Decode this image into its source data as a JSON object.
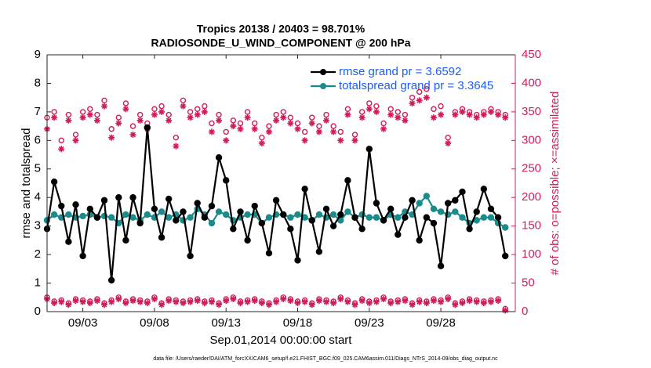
{
  "chart_data": {
    "type": "line",
    "title": "Tropics 20138 / 20403 = 98.701%",
    "subtitle": "RADIOSONDE_U_WIND_COMPONENT @ 200 hPa",
    "x_label": "Sep.01,2014 00:00:00 start",
    "y_label": "rmse and totalspread",
    "y2_label": "# of obs: o=possible; ×=assimilated",
    "annotation": "data file: /Users/raeder/DAI/ATM_forcXX/CAM6_setup/f.e21.FHIST_BGC.f09_025.CAM6assim.011/Diags_NTrS_2014-09/obs_diag_output.nc",
    "legend": "top-right",
    "xlim": [
      0.5,
      33.2
    ],
    "xticks": [
      {
        "value": 3,
        "label": "09/03"
      },
      {
        "value": 8,
        "label": "09/08"
      },
      {
        "value": 13,
        "label": "09/13"
      },
      {
        "value": 18,
        "label": "09/18"
      },
      {
        "value": 23,
        "label": "09/23"
      },
      {
        "value": 28,
        "label": "09/28"
      }
    ],
    "ylim": [
      0,
      9
    ],
    "yticks": [
      0,
      1,
      2,
      3,
      4,
      5,
      6,
      7,
      8,
      9
    ],
    "y2lim": [
      0,
      450
    ],
    "y2ticks": [
      0,
      50,
      100,
      150,
      200,
      250,
      300,
      350,
      400,
      450
    ],
    "x": [
      0.5,
      1,
      1.5,
      2,
      2.5,
      3,
      3.5,
      4,
      4.5,
      5,
      5.5,
      6,
      6.5,
      7,
      7.5,
      8,
      8.5,
      9,
      9.5,
      10,
      10.5,
      11,
      11.5,
      12,
      12.5,
      13,
      13.5,
      14,
      14.5,
      15,
      15.5,
      16,
      16.5,
      17,
      17.5,
      18,
      18.5,
      19,
      19.5,
      20,
      20.5,
      21,
      21.5,
      22,
      22.5,
      23,
      23.5,
      24,
      24.5,
      25,
      25.5,
      26,
      26.5,
      27,
      27.5,
      28,
      28.5,
      29,
      29.5,
      30,
      30.5,
      31,
      31.5,
      32,
      32.5
    ],
    "series": [
      {
        "name": "rmse grand pr = 3.6592",
        "color": "#000000",
        "marker": "filled-circle",
        "line": true,
        "values": [
          2.9,
          4.55,
          3.7,
          2.45,
          3.75,
          1.95,
          3.6,
          3.3,
          3.9,
          1.1,
          4.0,
          2.5,
          4.0,
          3.1,
          6.45,
          3.6,
          2.6,
          3.95,
          3.2,
          3.5,
          1.95,
          3.8,
          3.3,
          3.7,
          5.4,
          4.6,
          2.9,
          3.5,
          2.5,
          3.7,
          3.1,
          2.05,
          3.9,
          3.4,
          2.9,
          1.8,
          4.3,
          3.2,
          2.1,
          3.6,
          3.0,
          3.4,
          4.6,
          3.3,
          2.9,
          5.7,
          3.8,
          3.2,
          3.6,
          2.7,
          3.3,
          3.9,
          2.5,
          3.3,
          3.1,
          1.6,
          3.8,
          3.9,
          4.2,
          2.9,
          3.5,
          4.3,
          3.6,
          3.3,
          1.95
        ]
      },
      {
        "name": "totalspread grand pr = 3.3645",
        "color": "#1a8a8a",
        "marker": "filled-circle",
        "line": true,
        "values": [
          3.2,
          3.4,
          3.3,
          3.4,
          3.3,
          3.35,
          3.4,
          3.3,
          3.35,
          3.3,
          3.1,
          3.4,
          3.3,
          3.2,
          3.4,
          3.3,
          3.5,
          3.3,
          3.4,
          3.2,
          3.3,
          3.6,
          3.4,
          3.1,
          3.5,
          3.4,
          3.2,
          3.3,
          3.4,
          3.4,
          3.1,
          3.3,
          3.4,
          3.4,
          3.3,
          3.4,
          3.3,
          3.2,
          3.4,
          3.3,
          3.4,
          3.2,
          3.5,
          3.3,
          3.4,
          3.3,
          3.3,
          3.2,
          3.4,
          3.3,
          3.5,
          3.4,
          3.8,
          4.05,
          3.6,
          3.5,
          3.4,
          3.5,
          3.3,
          3.1,
          3.2,
          3.3,
          3.3,
          3.1,
          2.95
        ]
      },
      {
        "color": "#d01c5c",
        "marker": "circle",
        "line": false,
        "axis": "y2",
        "values": [
          340,
          350,
          300,
          345,
          310,
          350,
          355,
          345,
          370,
          320,
          340,
          365,
          325,
          345,
          330,
          355,
          360,
          345,
          305,
          370,
          350,
          355,
          360,
          330,
          345,
          315,
          335,
          330,
          350,
          330,
          305,
          325,
          345,
          350,
          340,
          330,
          315,
          340,
          325,
          345,
          325,
          315,
          355,
          310,
          350,
          365,
          360,
          330,
          355,
          350,
          345,
          375,
          385,
          390,
          355,
          360,
          305,
          350,
          355,
          350,
          345,
          350,
          355,
          350,
          345
        ]
      },
      {
        "color": "#d01c5c",
        "marker": "asterisk",
        "line": false,
        "axis": "y2",
        "values": [
          320,
          340,
          285,
          335,
          300,
          340,
          345,
          335,
          360,
          305,
          330,
          355,
          310,
          335,
          320,
          345,
          350,
          335,
          290,
          360,
          340,
          345,
          350,
          315,
          335,
          300,
          325,
          320,
          340,
          320,
          295,
          315,
          335,
          340,
          330,
          320,
          300,
          330,
          315,
          335,
          315,
          300,
          345,
          300,
          340,
          355,
          350,
          320,
          345,
          340,
          335,
          365,
          370,
          375,
          340,
          345,
          295,
          345,
          350,
          345,
          340,
          345,
          350,
          345,
          340
        ]
      },
      {
        "color": "#d01c5c",
        "marker": "circle",
        "line": false,
        "axis": "y2",
        "values": [
          25,
          18,
          20,
          15,
          22,
          20,
          18,
          22,
          15,
          20,
          25,
          18,
          22,
          20,
          18,
          25,
          15,
          22,
          20,
          18,
          20,
          22,
          18,
          20,
          15,
          22,
          25,
          18,
          20,
          22,
          18,
          15,
          20,
          25,
          22,
          18,
          20,
          15,
          22,
          20,
          18,
          25,
          20,
          15,
          22,
          18,
          20,
          25,
          18,
          20,
          22,
          15,
          20,
          18,
          22,
          20,
          25,
          15,
          18,
          22,
          20,
          18,
          20,
          22,
          5
        ]
      },
      {
        "color": "#d01c5c",
        "marker": "asterisk",
        "line": false,
        "axis": "y2",
        "values": [
          22,
          15,
          17,
          12,
          19,
          17,
          15,
          19,
          12,
          17,
          22,
          15,
          19,
          17,
          15,
          22,
          12,
          19,
          17,
          15,
          17,
          19,
          15,
          17,
          12,
          19,
          22,
          15,
          17,
          19,
          15,
          12,
          17,
          22,
          19,
          15,
          17,
          12,
          19,
          17,
          15,
          22,
          17,
          12,
          19,
          15,
          17,
          22,
          15,
          17,
          19,
          12,
          17,
          15,
          19,
          17,
          22,
          12,
          15,
          19,
          17,
          15,
          17,
          19,
          2
        ]
      }
    ]
  }
}
